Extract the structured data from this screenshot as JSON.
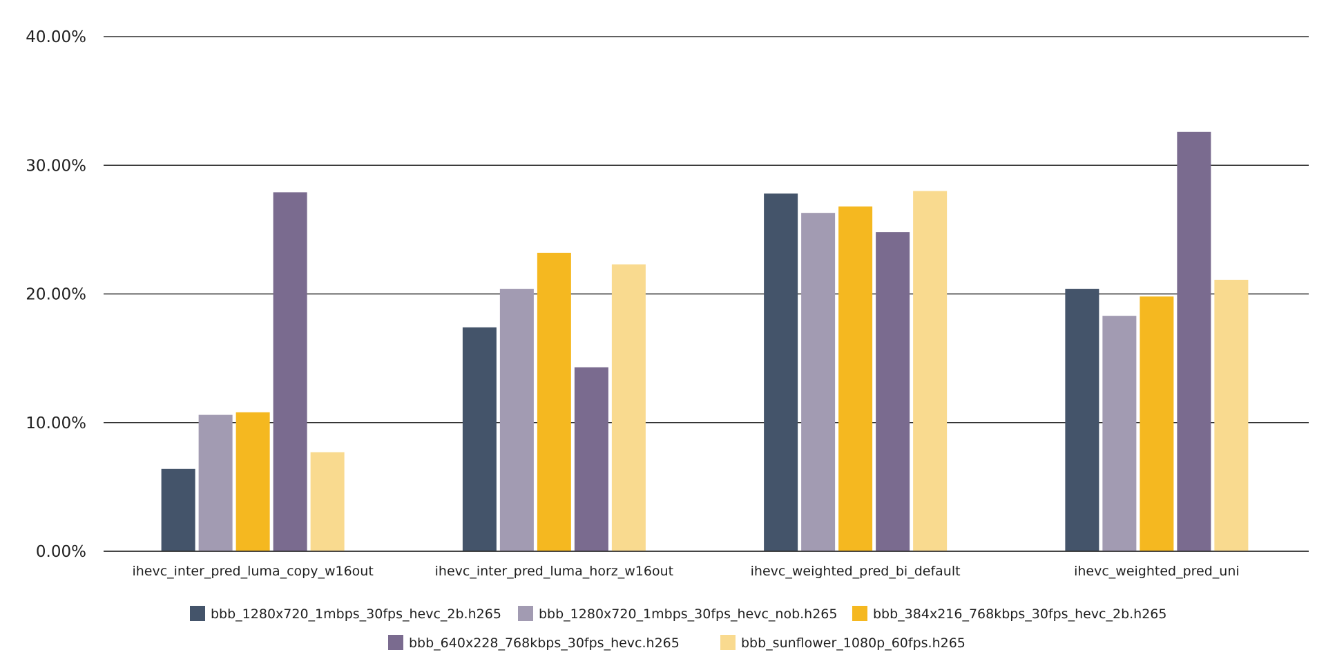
{
  "chart_data": {
    "type": "bar",
    "categories": [
      "ihevc_inter_pred_luma_copy_w16out",
      "ihevc_inter_pred_luma_horz_w16out",
      "ihevc_weighted_pred_bi_default",
      "ihevc_weighted_pred_uni"
    ],
    "series": [
      {
        "name": "bbb_1280x720_1mbps_30fps_hevc_2b.h265",
        "color": "#44546a",
        "values": [
          6.4,
          17.4,
          27.8,
          20.4
        ]
      },
      {
        "name": "bbb_1280x720_1mbps_30fps_hevc_nob.h265",
        "color": "#a29bb2",
        "values": [
          10.6,
          20.4,
          26.3,
          18.3
        ]
      },
      {
        "name": "bbb_384x216_768kbps_30fps_hevc_2b.h265",
        "color": "#f5b820",
        "values": [
          10.8,
          23.2,
          26.8,
          19.8
        ]
      },
      {
        "name": "bbb_640x228_768kbps_30fps_hevc.h265",
        "color": "#7a6b8f",
        "values": [
          27.9,
          14.3,
          24.8,
          32.6
        ]
      },
      {
        "name": "bbb_sunflower_1080p_60fps.h265",
        "color": "#f9da8f",
        "values": [
          7.7,
          22.3,
          28.0,
          21.1
        ]
      }
    ],
    "y_ticks": [
      "0.00%",
      "10.00%",
      "20.00%",
      "30.00%",
      "40.00%"
    ],
    "ylim": [
      0,
      40
    ],
    "grid": true,
    "legend_position": "bottom"
  }
}
